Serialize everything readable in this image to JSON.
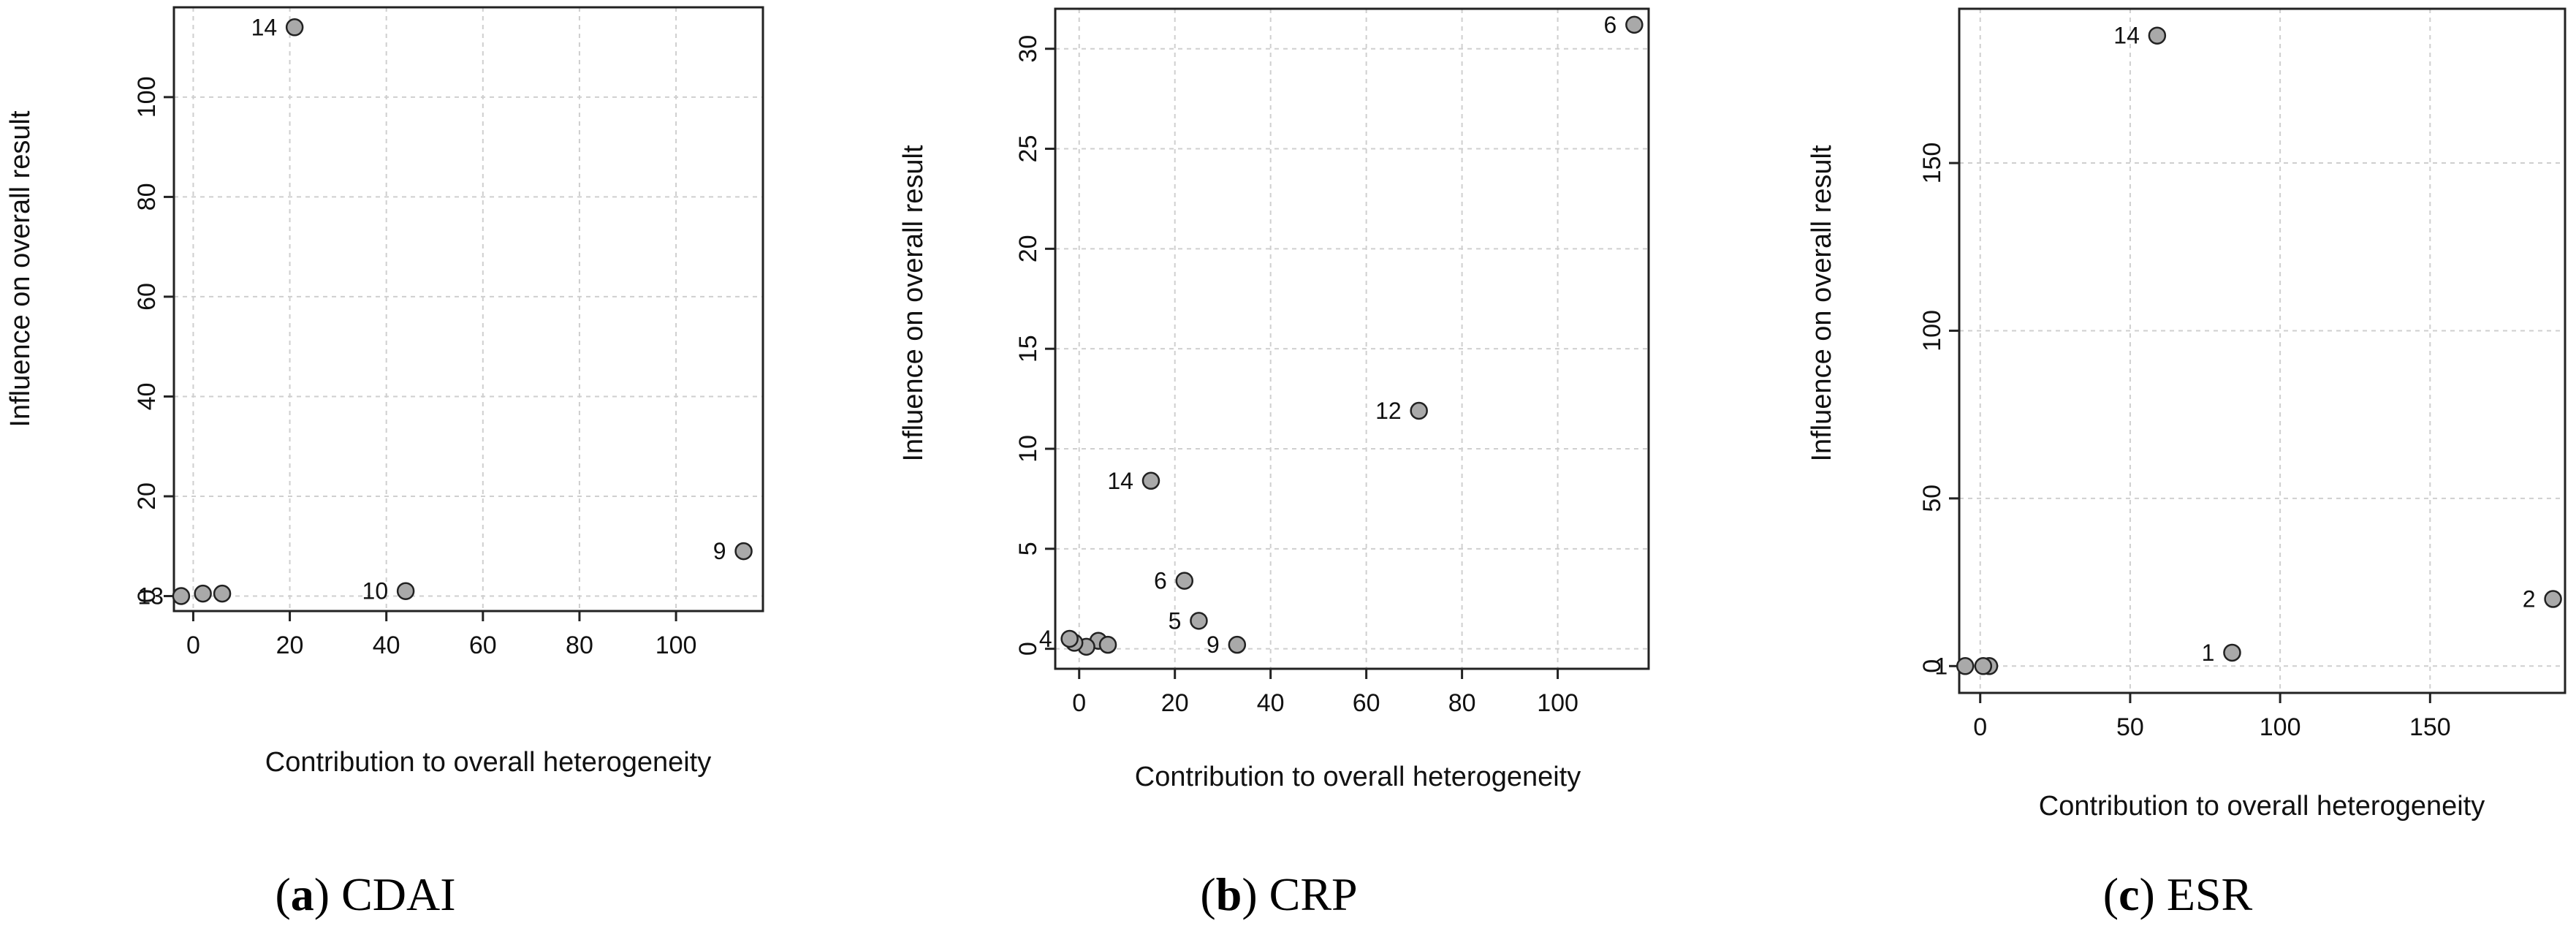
{
  "chart_data": [
    {
      "type": "scatter",
      "title": "",
      "xlabel": "Contribution to overall heterogeneity",
      "ylabel": "Influence on overall result",
      "xlim": [
        -4,
        118
      ],
      "ylim": [
        -3,
        118
      ],
      "xticks": [
        0,
        20,
        40,
        60,
        80,
        100
      ],
      "yticks": [
        0,
        20,
        40,
        60,
        80,
        100
      ],
      "grid": true,
      "points": [
        {
          "x": 21,
          "y": 114,
          "label": "14"
        },
        {
          "x": 114,
          "y": 9,
          "label": "9"
        },
        {
          "x": 44,
          "y": 1,
          "label": "10"
        },
        {
          "x": 6,
          "y": 0.5,
          "label": ""
        },
        {
          "x": 2,
          "y": 0.5,
          "label": ""
        },
        {
          "x": -2.5,
          "y": 0,
          "label": "13"
        }
      ],
      "caption": {
        "letter": "a",
        "text": "CDAI"
      }
    },
    {
      "type": "scatter",
      "title": "",
      "xlabel": "Contribution to overall heterogeneity",
      "ylabel": "Influence on overall result",
      "xlim": [
        -5,
        119
      ],
      "ylim": [
        -1,
        32
      ],
      "xticks": [
        0,
        20,
        40,
        60,
        80,
        100
      ],
      "yticks": [
        0,
        5,
        10,
        15,
        20,
        25,
        30
      ],
      "grid": true,
      "points": [
        {
          "x": 116,
          "y": 31.2,
          "label": "6"
        },
        {
          "x": 71,
          "y": 11.9,
          "label": "12"
        },
        {
          "x": 15,
          "y": 8.4,
          "label": "14"
        },
        {
          "x": 22,
          "y": 3.4,
          "label": "6"
        },
        {
          "x": 25,
          "y": 1.4,
          "label": "5"
        },
        {
          "x": 33,
          "y": 0.2,
          "label": "9"
        },
        {
          "x": 4,
          "y": 0.4,
          "label": ""
        },
        {
          "x": 6,
          "y": 0.2,
          "label": ""
        },
        {
          "x": 1.5,
          "y": 0.1,
          "label": ""
        },
        {
          "x": -1,
          "y": 0.3,
          "label": ""
        },
        {
          "x": -2,
          "y": 0.5,
          "label": "4"
        }
      ],
      "caption": {
        "letter": "b",
        "text": "CRP"
      }
    },
    {
      "type": "scatter",
      "title": "",
      "xlabel": "Contribution to overall heterogeneity",
      "ylabel": "Influence on overall result",
      "xlim": [
        -7,
        195
      ],
      "ylim": [
        -8,
        196
      ],
      "xticks": [
        0,
        50,
        100,
        150
      ],
      "yticks": [
        0,
        50,
        100,
        150
      ],
      "grid": true,
      "points": [
        {
          "x": 59,
          "y": 188,
          "label": "14"
        },
        {
          "x": 191,
          "y": 20,
          "label": "2"
        },
        {
          "x": 84,
          "y": 4,
          "label": "1"
        },
        {
          "x": 3,
          "y": 0,
          "label": ""
        },
        {
          "x": 1,
          "y": 0,
          "label": ""
        },
        {
          "x": -5,
          "y": 0,
          "label": "1"
        }
      ],
      "caption": {
        "letter": "c",
        "text": "ESR"
      }
    }
  ]
}
